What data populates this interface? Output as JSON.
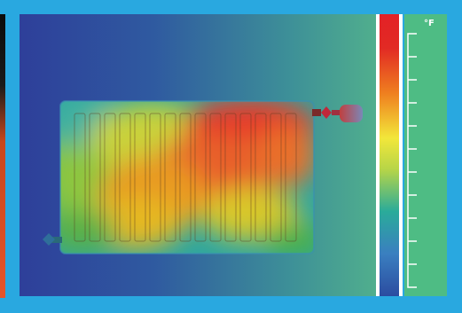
{
  "scale": {
    "unit": "°F"
  },
  "colors": {
    "frame_border": "#29a8e0",
    "background_left": "#2e4a9e",
    "background_right": "#4fb48a",
    "scale_panel": "#4ebc84",
    "palette_top": "#e32126",
    "palette_mid": "#f2e73a",
    "palette_bottom": "#2b4ca0"
  },
  "icons": {
    "inlet_valve": "valve-icon",
    "outlet_valve": "valve-icon"
  }
}
